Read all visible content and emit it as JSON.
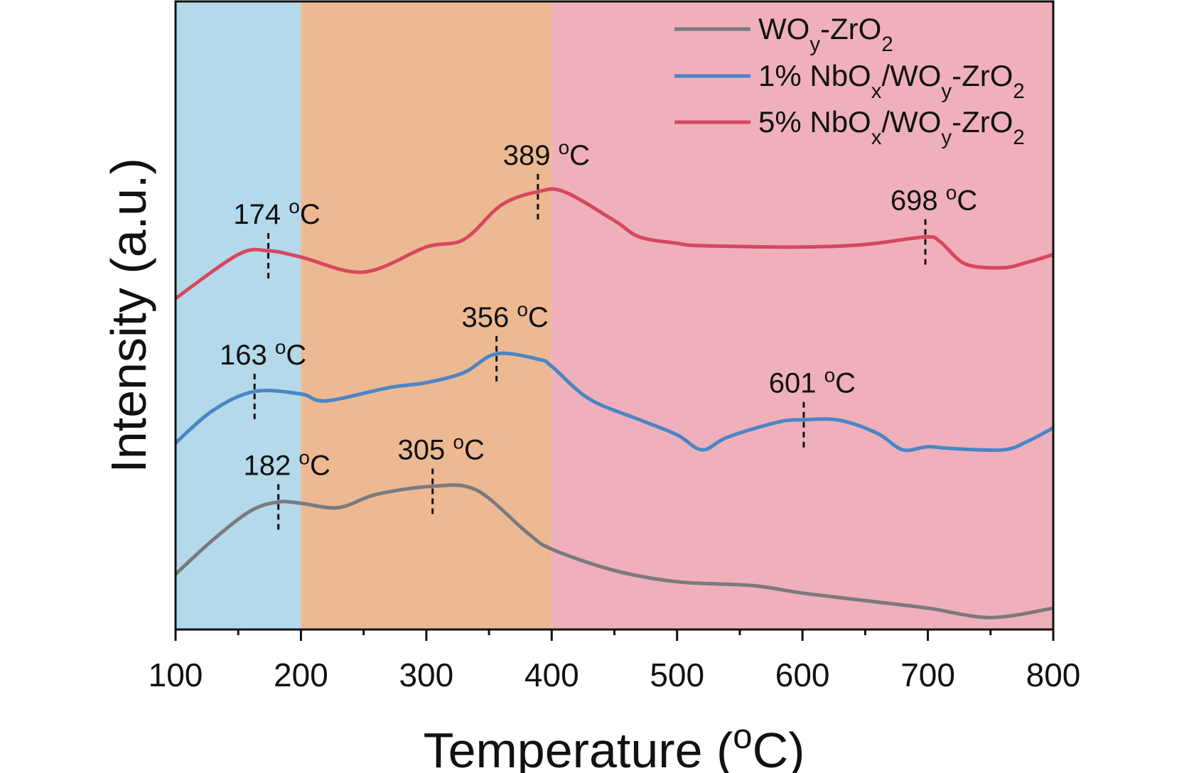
{
  "chart_data": {
    "type": "line",
    "xlabel": "Temperature (°C)",
    "ylabel": "Intensity (a.u.)",
    "xlim": [
      100,
      800
    ],
    "ylim": [
      0,
      100
    ],
    "x_ticks": [
      100,
      200,
      300,
      400,
      500,
      600,
      700,
      800
    ],
    "y_ticks_shown": false,
    "grid": false,
    "legend_position": "top-right",
    "regions": [
      {
        "from": 100,
        "to": 200,
        "color": "#b3d9ea"
      },
      {
        "from": 200,
        "to": 400,
        "color": "#edb993"
      },
      {
        "from": 400,
        "to": 800,
        "color": "#efb0bb"
      }
    ],
    "series": [
      {
        "name": "WOy-ZrO2",
        "color": "#7a7a7e",
        "x": [
          100,
          130,
          160,
          182,
          200,
          230,
          260,
          305,
          340,
          380,
          400,
          450,
          500,
          560,
          600,
          650,
          700,
          750,
          800
        ],
        "y": [
          8.8,
          14.3,
          18.9,
          20.3,
          20.1,
          19.4,
          21.5,
          22.8,
          22.2,
          15.5,
          12.8,
          9.4,
          7.6,
          7.0,
          5.8,
          4.6,
          3.4,
          1.9,
          3.4
        ],
        "annotations": [
          {
            "x": 182,
            "label": "182 °C"
          },
          {
            "x": 305,
            "label": "305 °C"
          }
        ]
      },
      {
        "name": "1% NbOx/WOy-ZrO2",
        "color": "#4a86c5",
        "x": [
          100,
          130,
          163,
          200,
          220,
          270,
          300,
          330,
          356,
          390,
          400,
          430,
          470,
          500,
          520,
          540,
          580,
          601,
          630,
          660,
          680,
          700,
          720,
          760,
          780,
          800
        ],
        "y": [
          29.7,
          34.9,
          37.9,
          37.5,
          36.4,
          38.5,
          39.3,
          40.9,
          43.9,
          43.0,
          41.9,
          36.7,
          33.4,
          31.0,
          28.6,
          30.6,
          33.0,
          33.4,
          33.3,
          31.2,
          28.6,
          29.1,
          28.8,
          28.6,
          30.0,
          32.1
        ],
        "annotations": [
          {
            "x": 163,
            "label": "163 °C"
          },
          {
            "x": 356,
            "label": "356 °C"
          },
          {
            "x": 601,
            "label": "601 °C"
          }
        ]
      },
      {
        "name": "5% NbOx/WOy-ZrO2",
        "color": "#d6485e",
        "x": [
          100,
          150,
          174,
          200,
          250,
          300,
          330,
          360,
          389,
          410,
          450,
          470,
          500,
          520,
          600,
          650,
          698,
          710,
          730,
          760,
          780,
          800
        ],
        "y": [
          52.7,
          59.7,
          60.3,
          59.3,
          56.9,
          60.9,
          62.1,
          67.6,
          69.7,
          69.7,
          65.1,
          62.5,
          61.5,
          61.1,
          60.9,
          61.3,
          62.5,
          61.7,
          58.2,
          57.6,
          58.5,
          59.7
        ],
        "annotations": [
          {
            "x": 174,
            "label": "174 °C"
          },
          {
            "x": 389,
            "label": "389 °C"
          },
          {
            "x": 698,
            "label": "698 °C"
          }
        ]
      }
    ]
  }
}
